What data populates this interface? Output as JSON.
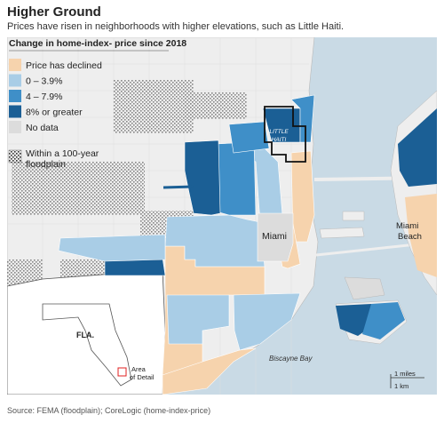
{
  "title": "Higher Ground",
  "subtitle": "Prices have risen in neighborhoods with higher elevations, such as Little Haiti.",
  "legend": {
    "title": "Change in home-index- price since 2018",
    "items": [
      {
        "label": "Price has declined",
        "color": "#f6d3ad"
      },
      {
        "label": "0 – 3.9%",
        "color": "#a9cde6"
      },
      {
        "label": "4 – 7.9%",
        "color": "#3f8fc8"
      },
      {
        "label": "8% or greater",
        "color": "#1b5f95"
      },
      {
        "label": "No data",
        "color": "#dcdcdc"
      }
    ],
    "floodplain_label_1": "Within a 100-year",
    "floodplain_label_2": "floodplain"
  },
  "places": {
    "little_haiti_1": "LITTLE",
    "little_haiti_2": "HAITI",
    "miami": "Miami",
    "miami_beach_1": "Miami",
    "miami_beach_2": "Beach",
    "biscayne_bay": "Biscayne Bay",
    "fla": "FLA.",
    "area_1": "Area",
    "area_2": "of Detail"
  },
  "scale": {
    "miles": "1 miles",
    "km": "1 km"
  },
  "source": "Source: FEMA (floodplain); CoreLogic (home-index-price)",
  "colors": {
    "water": "#c9dae5",
    "land": "#eeeeee",
    "outline": "#111111"
  }
}
